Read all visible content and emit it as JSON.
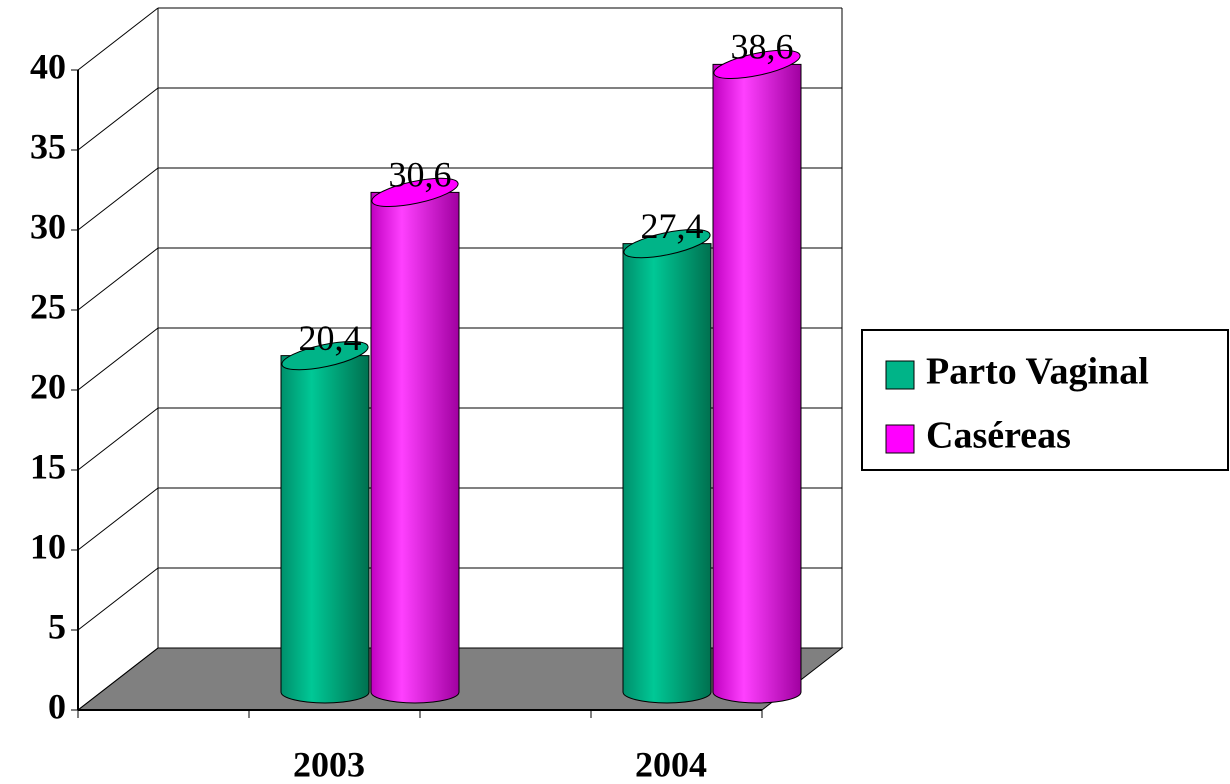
{
  "chart_data": {
    "type": "bar3d",
    "categories": [
      "2003",
      "2004"
    ],
    "series": [
      {
        "name": "Parto Vaginal",
        "color": "#00b488",
        "values": [
          20.4,
          27.4
        ],
        "value_labels": [
          "20,4",
          "27,4"
        ]
      },
      {
        "name": "Caséreas",
        "color": "#ff00ff",
        "values": [
          30.6,
          38.6
        ],
        "value_labels": [
          "30,6",
          "38,6"
        ]
      }
    ],
    "ylim": [
      0,
      40
    ],
    "yticks": [
      0,
      5,
      10,
      15,
      20,
      25,
      30,
      35,
      40
    ],
    "grid": true,
    "legend": "right"
  }
}
